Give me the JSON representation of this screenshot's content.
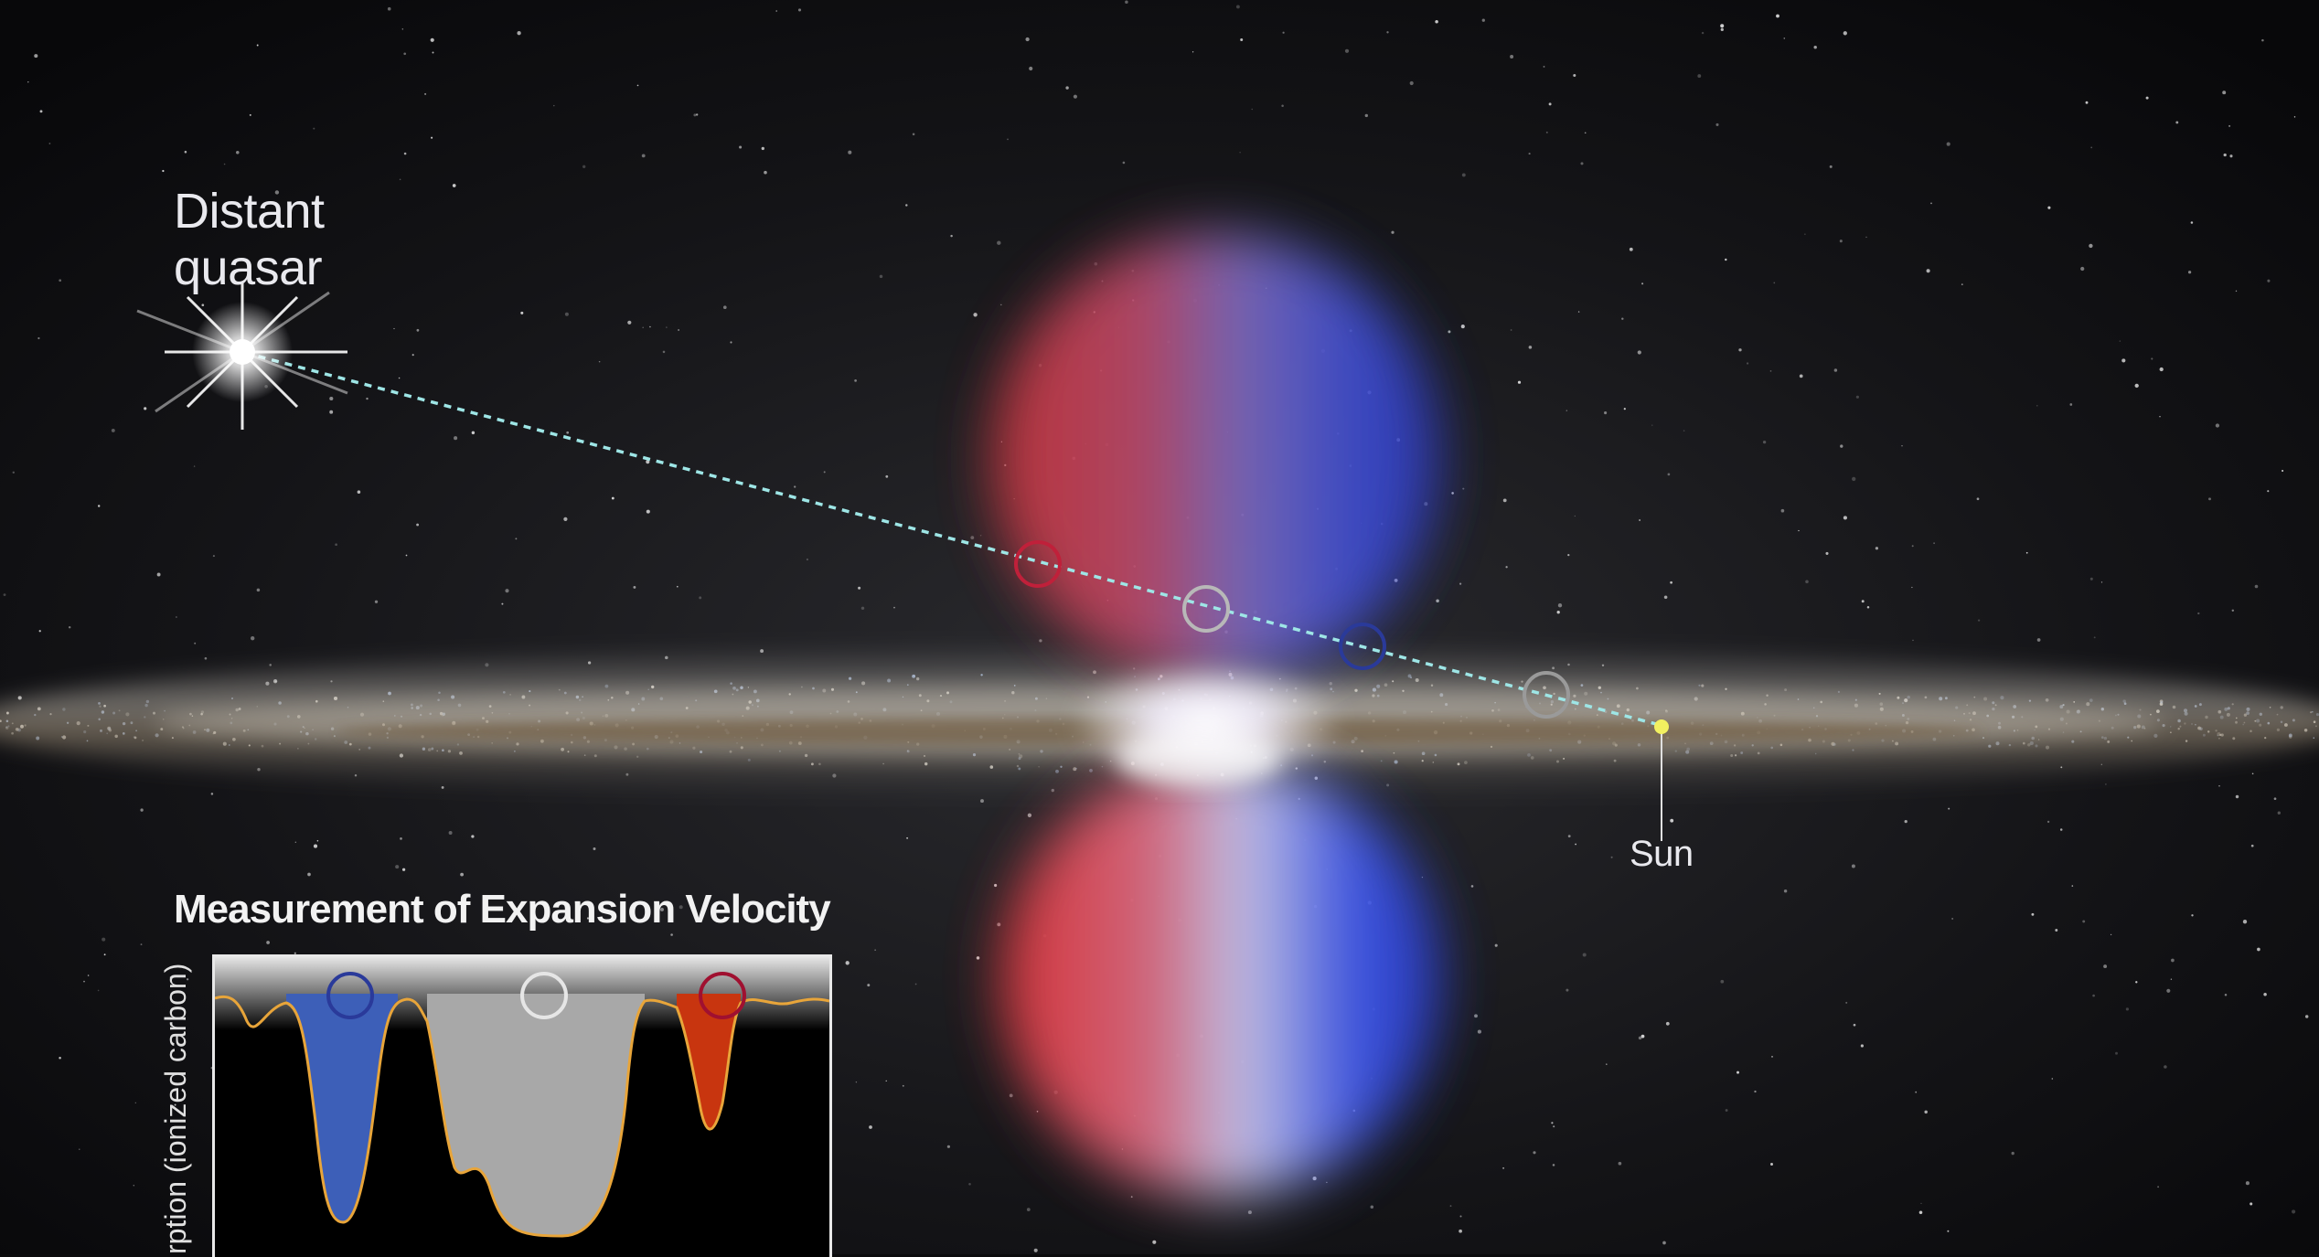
{
  "labels": {
    "quasar_line1": "Distant",
    "quasar_line2": "quasar",
    "sun": "Sun"
  },
  "inset": {
    "title": "Measurement of Expansion Velocity",
    "ylabel": "rption (ionized carbon)"
  },
  "colors": {
    "sky": "#0b0b0d",
    "red_lobe": "#d8343a",
    "blue_lobe": "#3b4fd6",
    "sightline": "#9ee6e6",
    "sun": "#f2f060",
    "spectrum_line": "#e8a53a",
    "blue_fill": "#3d5fb8",
    "gray_fill": "#a8a8a8",
    "red_fill": "#c8350f"
  },
  "markers": [
    {
      "name": "red-marker",
      "color": "#c0203a"
    },
    {
      "name": "white-marker",
      "color": "#b8b8b8"
    },
    {
      "name": "blue-marker",
      "color": "#2a3a9a"
    },
    {
      "name": "gray-marker",
      "color": "#9a9a9a"
    }
  ]
}
